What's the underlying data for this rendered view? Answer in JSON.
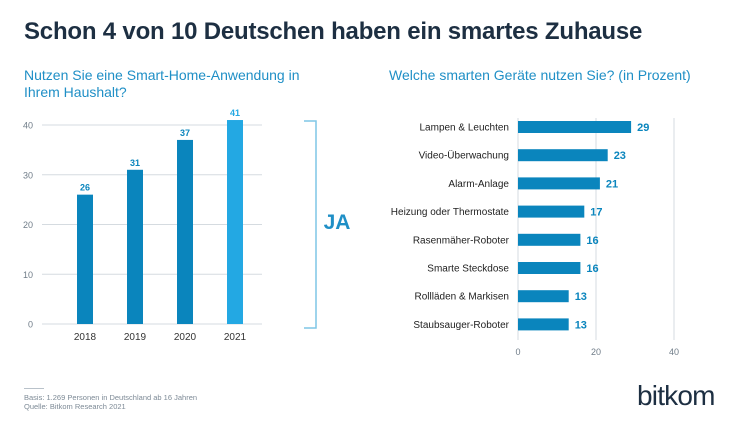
{
  "header": {
    "title": "Schon 4 von 10 Deutschen haben ein smartes Zuhause"
  },
  "colors": {
    "bar": "#0a85bd",
    "bar_highlight": "#23a8e3",
    "accent": "#1f8fc6",
    "dark": "#1d2f42",
    "grid": "#d5dbe0"
  },
  "chart_data": [
    {
      "type": "bar",
      "title": "Nutzen Sie eine Smart-Home-Anwendung in Ihrem Haushalt?",
      "categories": [
        "2018",
        "2019",
        "2020",
        "2021"
      ],
      "values": [
        26,
        31,
        37,
        41
      ],
      "yticks": [
        "0",
        "10",
        "20",
        "30",
        "40"
      ],
      "ylim": [
        0,
        40
      ],
      "annotation": "JA",
      "grid": true
    },
    {
      "type": "bar",
      "orientation": "horizontal",
      "title": "Welche smarten Geräte nutzen Sie? (in Prozent)",
      "categories": [
        "Lampen & Leuchten",
        "Video-Überwachung",
        "Alarm-Anlage",
        "Heizung oder Thermostate",
        "Rasenmäher-Roboter",
        "Smarte Steckdose",
        "Rollläden & Markisen",
        "Staubsauger-Roboter"
      ],
      "values": [
        29,
        23,
        21,
        17,
        16,
        16,
        13,
        13
      ],
      "xticks": [
        "0",
        "20",
        "40"
      ],
      "xlim": [
        0,
        40
      ],
      "grid": true
    }
  ],
  "footer": {
    "basis": "Basis: 1.269 Personen in Deutschland ab 16 Jahren",
    "quelle": "Quelle: Bitkom Research 2021"
  },
  "logo": {
    "text": "bitkom"
  }
}
